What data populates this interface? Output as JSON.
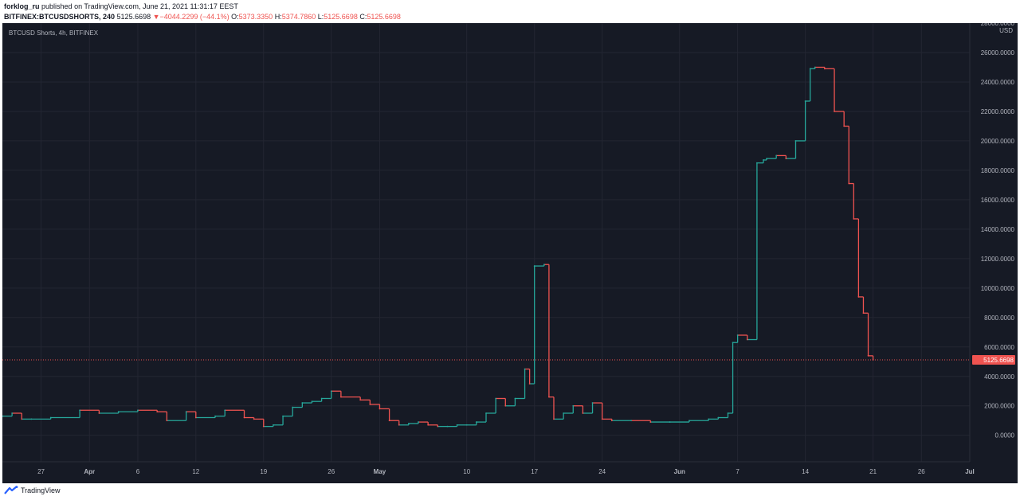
{
  "header": {
    "publisher": "forklog_ru",
    "published_text": "published on TradingView.com, June 21, 2021 11:31:17 EEST",
    "symbol": "BITFINEX:BTCUSDSHORTS, 240",
    "last": "5125.6698",
    "change_arrow": "▼",
    "change": "−4044.2299 (−44.1%)",
    "o_label": "O:",
    "o_value": "5373.3350",
    "h_label": "H:",
    "h_value": "5374.7860",
    "l_label": "L:",
    "l_value": "5125.6698",
    "c_label": "C:",
    "c_value": "5125.6698"
  },
  "footer": {
    "brand": "TradingView"
  },
  "colors": {
    "background": "#161a25",
    "grid": "#232632",
    "up": "#26a69a",
    "down": "#ef5350",
    "axis_text": "#b2b5be",
    "last_price": "#ef5350"
  },
  "chart_data": {
    "type": "line",
    "title": "BTCUSD Shorts, 4h, BITFINEX",
    "y_unit": "USD",
    "ylim": [
      -1800,
      28000
    ],
    "y_ticks": [
      "28000.0000",
      "26000.0000",
      "24000.0000",
      "22000.0000",
      "20000.0000",
      "18000.0000",
      "16000.0000",
      "14000.0000",
      "12000.0000",
      "10000.0000",
      "8000.0000",
      "6000.0000",
      "4000.0000",
      "2000.0000",
      "0.0000"
    ],
    "y_tick_values": [
      28000,
      26000,
      24000,
      22000,
      20000,
      18000,
      16000,
      14000,
      12000,
      10000,
      8000,
      6000,
      4000,
      2000,
      0
    ],
    "x_range": [
      "2021-03-23",
      "2021-07-01"
    ],
    "x_ticks": [
      {
        "label": "27",
        "date": "2021-03-27"
      },
      {
        "label": "Apr",
        "date": "2021-04-01"
      },
      {
        "label": "6",
        "date": "2021-04-06"
      },
      {
        "label": "12",
        "date": "2021-04-12"
      },
      {
        "label": "19",
        "date": "2021-04-19"
      },
      {
        "label": "26",
        "date": "2021-04-26"
      },
      {
        "label": "May",
        "date": "2021-05-01"
      },
      {
        "label": "10",
        "date": "2021-05-10"
      },
      {
        "label": "17",
        "date": "2021-05-17"
      },
      {
        "label": "24",
        "date": "2021-05-24"
      },
      {
        "label": "Jun",
        "date": "2021-06-01"
      },
      {
        "label": "7",
        "date": "2021-06-07"
      },
      {
        "label": "14",
        "date": "2021-06-14"
      },
      {
        "label": "21",
        "date": "2021-06-21"
      },
      {
        "label": "26",
        "date": "2021-06-26"
      },
      {
        "label": "Jul",
        "date": "2021-07-01"
      }
    ],
    "last_price": 5125.6698,
    "last_price_label": "5125.6698",
    "series": [
      {
        "x": [
          "2021-03-23",
          "2021-03-24",
          "2021-03-25",
          "2021-03-26",
          "2021-03-28",
          "2021-03-31",
          "2021-04-02",
          "2021-04-04",
          "2021-04-06",
          "2021-04-08",
          "2021-04-09",
          "2021-04-11",
          "2021-04-12",
          "2021-04-14",
          "2021-04-15",
          "2021-04-17",
          "2021-04-18",
          "2021-04-19",
          "2021-04-20",
          "2021-04-21",
          "2021-04-22",
          "2021-04-23",
          "2021-04-24",
          "2021-04-25",
          "2021-04-26",
          "2021-04-27",
          "2021-04-29",
          "2021-04-30",
          "2021-05-01",
          "2021-05-02",
          "2021-05-03",
          "2021-05-04",
          "2021-05-05",
          "2021-05-06",
          "2021-05-07",
          "2021-05-08",
          "2021-05-09",
          "2021-05-10",
          "2021-05-11",
          "2021-05-12",
          "2021-05-13",
          "2021-05-14",
          "2021-05-15",
          "2021-05-16",
          "2021-05-16T12",
          "2021-05-17",
          "2021-05-18",
          "2021-05-18T12",
          "2021-05-19",
          "2021-05-20",
          "2021-05-21",
          "2021-05-22",
          "2021-05-23",
          "2021-05-24",
          "2021-05-25",
          "2021-05-27",
          "2021-05-29",
          "2021-05-31",
          "2021-06-02",
          "2021-06-04",
          "2021-06-05",
          "2021-06-06",
          "2021-06-06T12",
          "2021-06-07",
          "2021-06-08",
          "2021-06-09",
          "2021-06-09T16",
          "2021-06-10",
          "2021-06-11",
          "2021-06-12",
          "2021-06-13",
          "2021-06-14",
          "2021-06-14T12",
          "2021-06-15",
          "2021-06-16",
          "2021-06-17",
          "2021-06-18",
          "2021-06-18T12",
          "2021-06-19",
          "2021-06-19T12",
          "2021-06-20",
          "2021-06-20T12",
          "2021-06-21"
        ],
        "y": [
          1300,
          1500,
          1100,
          1100,
          1200,
          1700,
          1500,
          1600,
          1700,
          1600,
          1000,
          1600,
          1200,
          1300,
          1700,
          1200,
          1100,
          600,
          700,
          1300,
          1900,
          2200,
          2300,
          2500,
          3000,
          2600,
          2400,
          2100,
          1800,
          1000,
          700,
          800,
          900,
          700,
          600,
          600,
          700,
          700,
          900,
          1500,
          2500,
          2000,
          2500,
          4500,
          3500,
          11500,
          11600,
          2600,
          1100,
          1500,
          2000,
          1500,
          2200,
          1100,
          1000,
          1000,
          900,
          900,
          1000,
          1100,
          1200,
          1500,
          6300,
          6800,
          6500,
          18500,
          18700,
          18800,
          19000,
          18800,
          20000,
          22700,
          24900,
          25000,
          24900,
          22000,
          21000,
          17100,
          14700,
          9400,
          8300,
          5400,
          5125.6698
        ]
      }
    ]
  }
}
